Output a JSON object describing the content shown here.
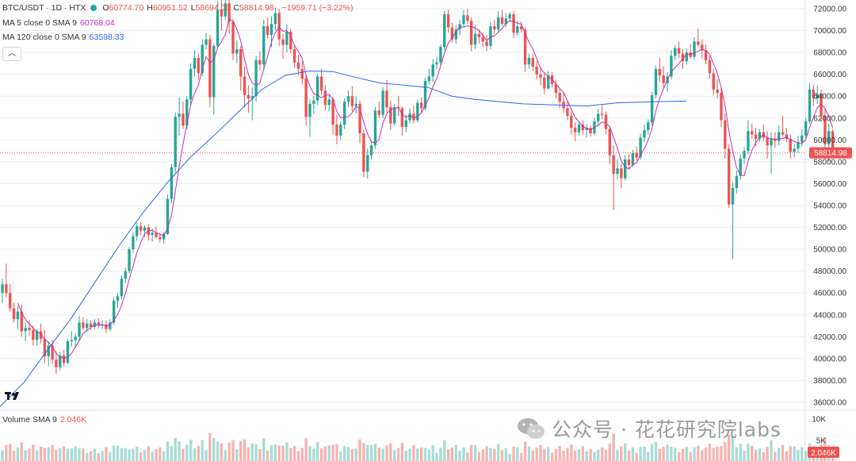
{
  "header": {
    "symbol_label": "BTC/USDT · 1D · HTX",
    "ohlc": [
      {
        "k": "O",
        "v": "60774.70"
      },
      {
        "k": "H",
        "v": "60951.52"
      },
      {
        "k": "L",
        "v": "58694.06"
      },
      {
        "k": "C",
        "v": "58814.98"
      }
    ],
    "change": "−1959.71 (−3.22%)"
  },
  "indicators": {
    "ma5_label": "MA 5 close 0 SMA 9",
    "ma5_value": "60768.04",
    "ma120_label": "MA 120 close 0 SMA 9",
    "ma120_value": "63598.33",
    "volume_label": "Volume SMA 9",
    "volume_value": "2.046K"
  },
  "collapse_icon": "chevron-up-icon",
  "watermark": "公众号 · 花花研究院labs",
  "price_badge": "58814.98",
  "volume_badge": "2.046K",
  "colors": {
    "up": "#26a69a",
    "down": "#ef5350",
    "ma5": "#c12fb5",
    "ma120": "#2962ff",
    "vol_up": "#a8ddd6",
    "vol_down": "#f7b3b1",
    "text": "#333333",
    "grid": "#eeeeee"
  },
  "chart_data": {
    "type": "candlestick",
    "price_axis": {
      "ticks": [
        36000,
        38000,
        40000,
        42000,
        44000,
        46000,
        48000,
        50000,
        52000,
        54000,
        56000,
        58000,
        60000,
        62000,
        64000,
        66000,
        68000,
        70000,
        72000
      ],
      "range": [
        35200,
        72700
      ]
    },
    "volume_axis": {
      "ticks": [
        "10K",
        "5K"
      ],
      "range": [
        0,
        12000
      ]
    },
    "last_price": 58814.98,
    "candles": [
      [
        46000,
        47300,
        45100,
        46800
      ],
      [
        46800,
        48700,
        45600,
        46000
      ],
      [
        46000,
        46800,
        44300,
        44600
      ],
      [
        44600,
        45100,
        43300,
        43600
      ],
      [
        43600,
        44800,
        42700,
        44300
      ],
      [
        44300,
        44900,
        42000,
        42500
      ],
      [
        42500,
        43300,
        41600,
        42800
      ],
      [
        42800,
        43500,
        42100,
        42600
      ],
      [
        42600,
        43000,
        41200,
        41700
      ],
      [
        41700,
        42700,
        41200,
        42500
      ],
      [
        42500,
        43200,
        41400,
        41800
      ],
      [
        41800,
        42600,
        39600,
        40200
      ],
      [
        40200,
        41600,
        39300,
        41200
      ],
      [
        41200,
        41700,
        39500,
        39900
      ],
      [
        39900,
        40700,
        38600,
        39200
      ],
      [
        39200,
        40600,
        38900,
        40300
      ],
      [
        40300,
        40800,
        39300,
        39600
      ],
      [
        39600,
        41800,
        39500,
        41600
      ],
      [
        41600,
        42500,
        41100,
        41700
      ],
      [
        41700,
        42300,
        41000,
        42000
      ],
      [
        42000,
        43900,
        41600,
        43300
      ],
      [
        43300,
        43800,
        42600,
        42800
      ],
      [
        42800,
        43600,
        42400,
        43200
      ],
      [
        43200,
        43500,
        42600,
        42900
      ],
      [
        42900,
        43600,
        42700,
        43300
      ],
      [
        43300,
        43700,
        42800,
        43000
      ],
      [
        43000,
        43500,
        42700,
        43100
      ],
      [
        43100,
        43500,
        42300,
        42700
      ],
      [
        42700,
        43600,
        42500,
        43300
      ],
      [
        43300,
        45600,
        43100,
        45300
      ],
      [
        45300,
        46000,
        44600,
        45700
      ],
      [
        45700,
        47600,
        45400,
        47300
      ],
      [
        47300,
        48300,
        46900,
        48000
      ],
      [
        48000,
        50200,
        47800,
        50000
      ],
      [
        50000,
        51500,
        49700,
        51200
      ],
      [
        51200,
        52400,
        50800,
        52100
      ],
      [
        52100,
        52500,
        51300,
        51700
      ],
      [
        51700,
        52200,
        51100,
        52000
      ],
      [
        52000,
        52300,
        50800,
        51300
      ],
      [
        51300,
        51900,
        50700,
        51500
      ],
      [
        51500,
        52100,
        51000,
        51100
      ],
      [
        51100,
        51500,
        50600,
        50900
      ],
      [
        50900,
        51600,
        50500,
        51400
      ],
      [
        51400,
        55000,
        51300,
        54600
      ],
      [
        54600,
        57800,
        54200,
        57500
      ],
      [
        57500,
        62500,
        57000,
        62100
      ],
      [
        62100,
        63900,
        60400,
        62400
      ],
      [
        62400,
        63500,
        61000,
        61300
      ],
      [
        61300,
        64000,
        61000,
        63700
      ],
      [
        63700,
        67000,
        63200,
        66500
      ],
      [
        66500,
        68200,
        65800,
        67500
      ],
      [
        67500,
        67900,
        65500,
        66100
      ],
      [
        66100,
        69200,
        65800,
        68700
      ],
      [
        68700,
        69800,
        68300,
        69200
      ],
      [
        69200,
        69600,
        63000,
        63900
      ],
      [
        63900,
        68800,
        62300,
        68600
      ],
      [
        68600,
        72700,
        68400,
        71900
      ],
      [
        71900,
        72800,
        70000,
        71300
      ],
      [
        71300,
        73000,
        71000,
        72500
      ],
      [
        72500,
        73400,
        69700,
        70800
      ],
      [
        70800,
        71000,
        67300,
        67900
      ],
      [
        67900,
        69100,
        67000,
        68300
      ],
      [
        68300,
        68600,
        64500,
        65800
      ],
      [
        65800,
        66700,
        63000,
        64100
      ],
      [
        64100,
        65000,
        62500,
        63800
      ],
      [
        63800,
        64800,
        61800,
        64000
      ],
      [
        64000,
        67700,
        63500,
        67300
      ],
      [
        67300,
        68100,
        66400,
        66900
      ],
      [
        66900,
        71000,
        66500,
        70400
      ],
      [
        70400,
        71200,
        69300,
        69600
      ],
      [
        69600,
        71300,
        68500,
        70600
      ],
      [
        70600,
        72100,
        70000,
        71600
      ],
      [
        71600,
        72000,
        68600,
        69200
      ],
      [
        69200,
        69700,
        67400,
        68700
      ],
      [
        68700,
        70600,
        68000,
        69900
      ],
      [
        69900,
        70200,
        67900,
        68300
      ],
      [
        68300,
        68700,
        66600,
        67100
      ],
      [
        67100,
        67800,
        65900,
        66500
      ],
      [
        66500,
        67200,
        65100,
        65600
      ],
      [
        65600,
        65800,
        61300,
        62100
      ],
      [
        62100,
        63700,
        60300,
        63300
      ],
      [
        63300,
        64000,
        62400,
        63600
      ],
      [
        63600,
        66100,
        63200,
        65800
      ],
      [
        65800,
        66500,
        64100,
        64500
      ],
      [
        64500,
        65000,
        62700,
        63200
      ],
      [
        63200,
        64200,
        62600,
        63700
      ],
      [
        63700,
        63900,
        60500,
        61400
      ],
      [
        61400,
        62300,
        59600,
        60400
      ],
      [
        60400,
        61700,
        60000,
        61400
      ],
      [
        61400,
        63800,
        61000,
        63500
      ],
      [
        63500,
        64500,
        63000,
        64000
      ],
      [
        64000,
        64900,
        62600,
        63100
      ],
      [
        63100,
        64000,
        62400,
        63300
      ],
      [
        63300,
        63600,
        59700,
        60600
      ],
      [
        60600,
        60900,
        56600,
        57100
      ],
      [
        57100,
        59200,
        56500,
        58600
      ],
      [
        58600,
        59900,
        58200,
        59500
      ],
      [
        59500,
        63000,
        59200,
        62700
      ],
      [
        62700,
        63500,
        62000,
        62300
      ],
      [
        62300,
        64800,
        62000,
        64500
      ],
      [
        64500,
        65500,
        62500,
        63000
      ],
      [
        63000,
        63600,
        60900,
        61500
      ],
      [
        61500,
        63300,
        61300,
        63000
      ],
      [
        63000,
        64000,
        62200,
        62900
      ],
      [
        62900,
        63100,
        60400,
        61200
      ],
      [
        61200,
        62300,
        60700,
        61800
      ],
      [
        61800,
        62900,
        61500,
        62400
      ],
      [
        62400,
        63100,
        61500,
        61800
      ],
      [
        61800,
        63700,
        61600,
        63400
      ],
      [
        63400,
        63900,
        62400,
        62900
      ],
      [
        62900,
        65700,
        62700,
        65400
      ],
      [
        65400,
        66500,
        65100,
        65800
      ],
      [
        65800,
        67400,
        65300,
        66900
      ],
      [
        66900,
        67600,
        66500,
        67100
      ],
      [
        67100,
        68700,
        66800,
        68500
      ],
      [
        68500,
        71800,
        68200,
        71500
      ],
      [
        71500,
        71900,
        69800,
        70300
      ],
      [
        70300,
        70700,
        68900,
        69200
      ],
      [
        69200,
        70500,
        68800,
        70100
      ],
      [
        70100,
        71000,
        69600,
        70600
      ],
      [
        70600,
        71900,
        70300,
        71400
      ],
      [
        71400,
        72000,
        70600,
        70900
      ],
      [
        70900,
        71200,
        68100,
        68700
      ],
      [
        68700,
        70500,
        68300,
        69700
      ],
      [
        69700,
        70100,
        68800,
        69400
      ],
      [
        69400,
        69800,
        68500,
        69000
      ],
      [
        69000,
        69600,
        68100,
        68600
      ],
      [
        68600,
        70800,
        68300,
        70400
      ],
      [
        70400,
        71000,
        69700,
        70100
      ],
      [
        70100,
        71800,
        69800,
        71200
      ],
      [
        71200,
        71900,
        70400,
        70600
      ],
      [
        70600,
        71600,
        70300,
        71100
      ],
      [
        71100,
        71700,
        70800,
        71500
      ],
      [
        71500,
        71800,
        69300,
        69800
      ],
      [
        69800,
        70900,
        69500,
        70400
      ],
      [
        70400,
        70800,
        69800,
        70100
      ],
      [
        70100,
        70300,
        66200,
        66900
      ],
      [
        66900,
        67900,
        66500,
        67500
      ],
      [
        67500,
        67900,
        66300,
        66700
      ],
      [
        66700,
        67200,
        65500,
        66000
      ],
      [
        66000,
        66700,
        65000,
        65700
      ],
      [
        65700,
        66200,
        64200,
        64700
      ],
      [
        64700,
        66300,
        64600,
        65900
      ],
      [
        65900,
        66200,
        64800,
        65100
      ],
      [
        65100,
        65500,
        63800,
        64300
      ],
      [
        64300,
        64700,
        62900,
        63500
      ],
      [
        63500,
        64300,
        62500,
        62900
      ],
      [
        62900,
        63600,
        61800,
        62200
      ],
      [
        62200,
        62600,
        60500,
        61100
      ],
      [
        61100,
        61600,
        59900,
        60700
      ],
      [
        60700,
        61600,
        60400,
        61400
      ],
      [
        61400,
        61800,
        60500,
        60900
      ],
      [
        60900,
        61400,
        60200,
        61100
      ],
      [
        61100,
        61300,
        60300,
        60600
      ],
      [
        60600,
        62000,
        60400,
        61700
      ],
      [
        61700,
        62800,
        61300,
        62400
      ],
      [
        62400,
        63200,
        61900,
        62300
      ],
      [
        62300,
        62600,
        60500,
        61000
      ],
      [
        61000,
        61100,
        57800,
        58600
      ],
      [
        58600,
        59500,
        53600,
        56900
      ],
      [
        56900,
        58200,
        56400,
        57400
      ],
      [
        57400,
        57800,
        55600,
        56500
      ],
      [
        56500,
        58600,
        56300,
        58200
      ],
      [
        58200,
        58700,
        57300,
        57700
      ],
      [
        57700,
        59100,
        57500,
        58800
      ],
      [
        58800,
        59400,
        58100,
        58400
      ],
      [
        58400,
        60600,
        58200,
        60200
      ],
      [
        60200,
        61400,
        59800,
        60900
      ],
      [
        60900,
        61900,
        60500,
        61600
      ],
      [
        61600,
        64400,
        61300,
        64100
      ],
      [
        64100,
        66800,
        63800,
        66500
      ],
      [
        66500,
        67500,
        65300,
        65900
      ],
      [
        65900,
        66700,
        64700,
        65200
      ],
      [
        65200,
        66200,
        64400,
        65800
      ],
      [
        65800,
        68200,
        65500,
        67700
      ],
      [
        67700,
        68700,
        67300,
        68400
      ],
      [
        68400,
        69000,
        67500,
        67900
      ],
      [
        67900,
        68300,
        66500,
        67200
      ],
      [
        67200,
        68400,
        66900,
        68000
      ],
      [
        68000,
        68800,
        67400,
        67600
      ],
      [
        67600,
        69400,
        67300,
        69000
      ],
      [
        69000,
        70200,
        68500,
        68700
      ],
      [
        68700,
        69200,
        67400,
        68200
      ],
      [
        68200,
        68700,
        66900,
        67300
      ],
      [
        67300,
        67700,
        65600,
        66100
      ],
      [
        66100,
        66500,
        64100,
        64600
      ],
      [
        64600,
        65600,
        63800,
        64300
      ],
      [
        64300,
        64800,
        61200,
        61800
      ],
      [
        61800,
        62400,
        58300,
        59200
      ],
      [
        59200,
        59600,
        53800,
        54100
      ],
      [
        54100,
        56100,
        49100,
        55600
      ],
      [
        55600,
        57200,
        55100,
        56700
      ],
      [
        56700,
        58700,
        56300,
        58300
      ],
      [
        58300,
        59300,
        57800,
        59000
      ],
      [
        59000,
        61800,
        58700,
        60800
      ],
      [
        60800,
        61500,
        60100,
        60500
      ],
      [
        60500,
        61100,
        59400,
        60100
      ],
      [
        60100,
        61000,
        59800,
        60700
      ],
      [
        60700,
        61400,
        59900,
        60200
      ],
      [
        60200,
        60800,
        58300,
        59500
      ],
      [
        59500,
        60700,
        56900,
        60100
      ],
      [
        60100,
        60700,
        59300,
        59900
      ],
      [
        59900,
        61300,
        59500,
        60700
      ],
      [
        60700,
        62200,
        60300,
        60500
      ],
      [
        60500,
        61100,
        59800,
        60100
      ],
      [
        60100,
        60500,
        58300,
        58900
      ],
      [
        58900,
        59600,
        58400,
        59200
      ],
      [
        59200,
        60400,
        58800,
        59800
      ],
      [
        59800,
        61000,
        59400,
        60400
      ],
      [
        60400,
        62000,
        60100,
        61700
      ],
      [
        61700,
        65200,
        61500,
        64600
      ],
      [
        64600,
        65000,
        63100,
        63800
      ],
      [
        63800,
        65000,
        63300,
        64200
      ],
      [
        64200,
        64600,
        61700,
        62200
      ],
      [
        62200,
        62800,
        58200,
        59600
      ],
      [
        59600,
        61500,
        58000,
        60800
      ],
      [
        60800,
        61000,
        58700,
        58800
      ]
    ],
    "ma120": [
      [
        0,
        35600
      ],
      [
        30,
        37800
      ],
      [
        60,
        40800
      ],
      [
        90,
        43700
      ],
      [
        120,
        47000
      ],
      [
        150,
        50300
      ],
      [
        180,
        53300
      ],
      [
        210,
        56000
      ],
      [
        240,
        58400
      ],
      [
        270,
        60400
      ],
      [
        300,
        62500
      ],
      [
        330,
        64600
      ],
      [
        360,
        65900
      ],
      [
        390,
        66300
      ],
      [
        420,
        66250
      ],
      [
        450,
        65700
      ],
      [
        480,
        65200
      ],
      [
        510,
        65000
      ],
      [
        540,
        64800
      ],
      [
        570,
        64000
      ],
      [
        600,
        63700
      ],
      [
        630,
        63500
      ],
      [
        660,
        63300
      ],
      [
        700,
        63200
      ],
      [
        740,
        63100
      ],
      [
        780,
        63400
      ],
      [
        830,
        63500
      ],
      [
        866,
        63550
      ]
    ]
  }
}
